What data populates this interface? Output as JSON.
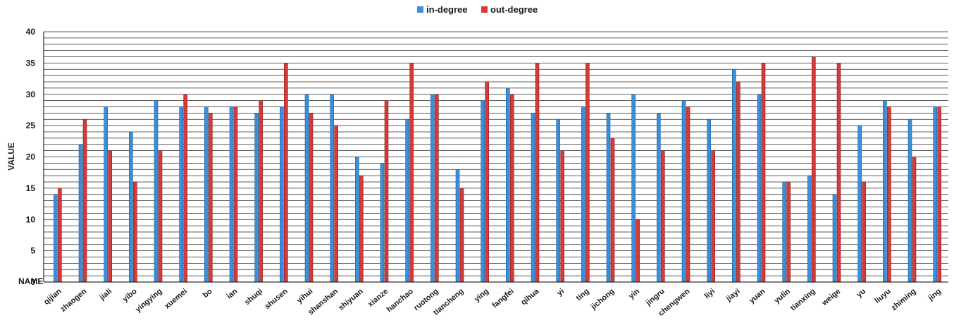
{
  "chart_data": {
    "type": "bar",
    "title": "",
    "xlabel": "NAME",
    "ylabel": "VALUE",
    "ylim": [
      0,
      40
    ],
    "yticks": [
      0,
      5,
      10,
      15,
      20,
      25,
      30,
      35,
      40
    ],
    "grid": true,
    "legend_position": "top",
    "categories": [
      "qijian",
      "zhaogen",
      "jiali",
      "yibo",
      "yingying",
      "xuemei",
      "bo",
      "ian",
      "shuqi",
      "shusen",
      "yihui",
      "shanshan",
      "shiyuan",
      "xianze",
      "hanchao",
      "ruotong",
      "tiancheng",
      "ying",
      "fangfei",
      "qihua",
      "yi",
      "ting",
      "jichong",
      "yin",
      "jingru",
      "chengwen",
      "liyi",
      "jiayi",
      "yuan",
      "yulin",
      "tianxing",
      "weige",
      "yu",
      "liuyu",
      "zhiming",
      "jing"
    ],
    "series": [
      {
        "name": "in-degree",
        "color": "#3b8fd9",
        "values": [
          14,
          22,
          28,
          24,
          29,
          28,
          28,
          28,
          27,
          28,
          30,
          30,
          20,
          19,
          26,
          30,
          18,
          29,
          31,
          27,
          26,
          28,
          27,
          30,
          27,
          29,
          26,
          34,
          30,
          16,
          17,
          14,
          25,
          29,
          26,
          28
        ]
      },
      {
        "name": "out-degree",
        "color": "#d43a3a",
        "values": [
          15,
          26,
          21,
          16,
          21,
          30,
          27,
          28,
          29,
          35,
          27,
          25,
          17,
          29,
          35,
          30,
          15,
          32,
          30,
          35,
          21,
          35,
          23,
          10,
          21,
          28,
          21,
          32,
          35,
          16,
          36,
          35,
          16,
          28,
          20,
          28
        ]
      }
    ]
  }
}
